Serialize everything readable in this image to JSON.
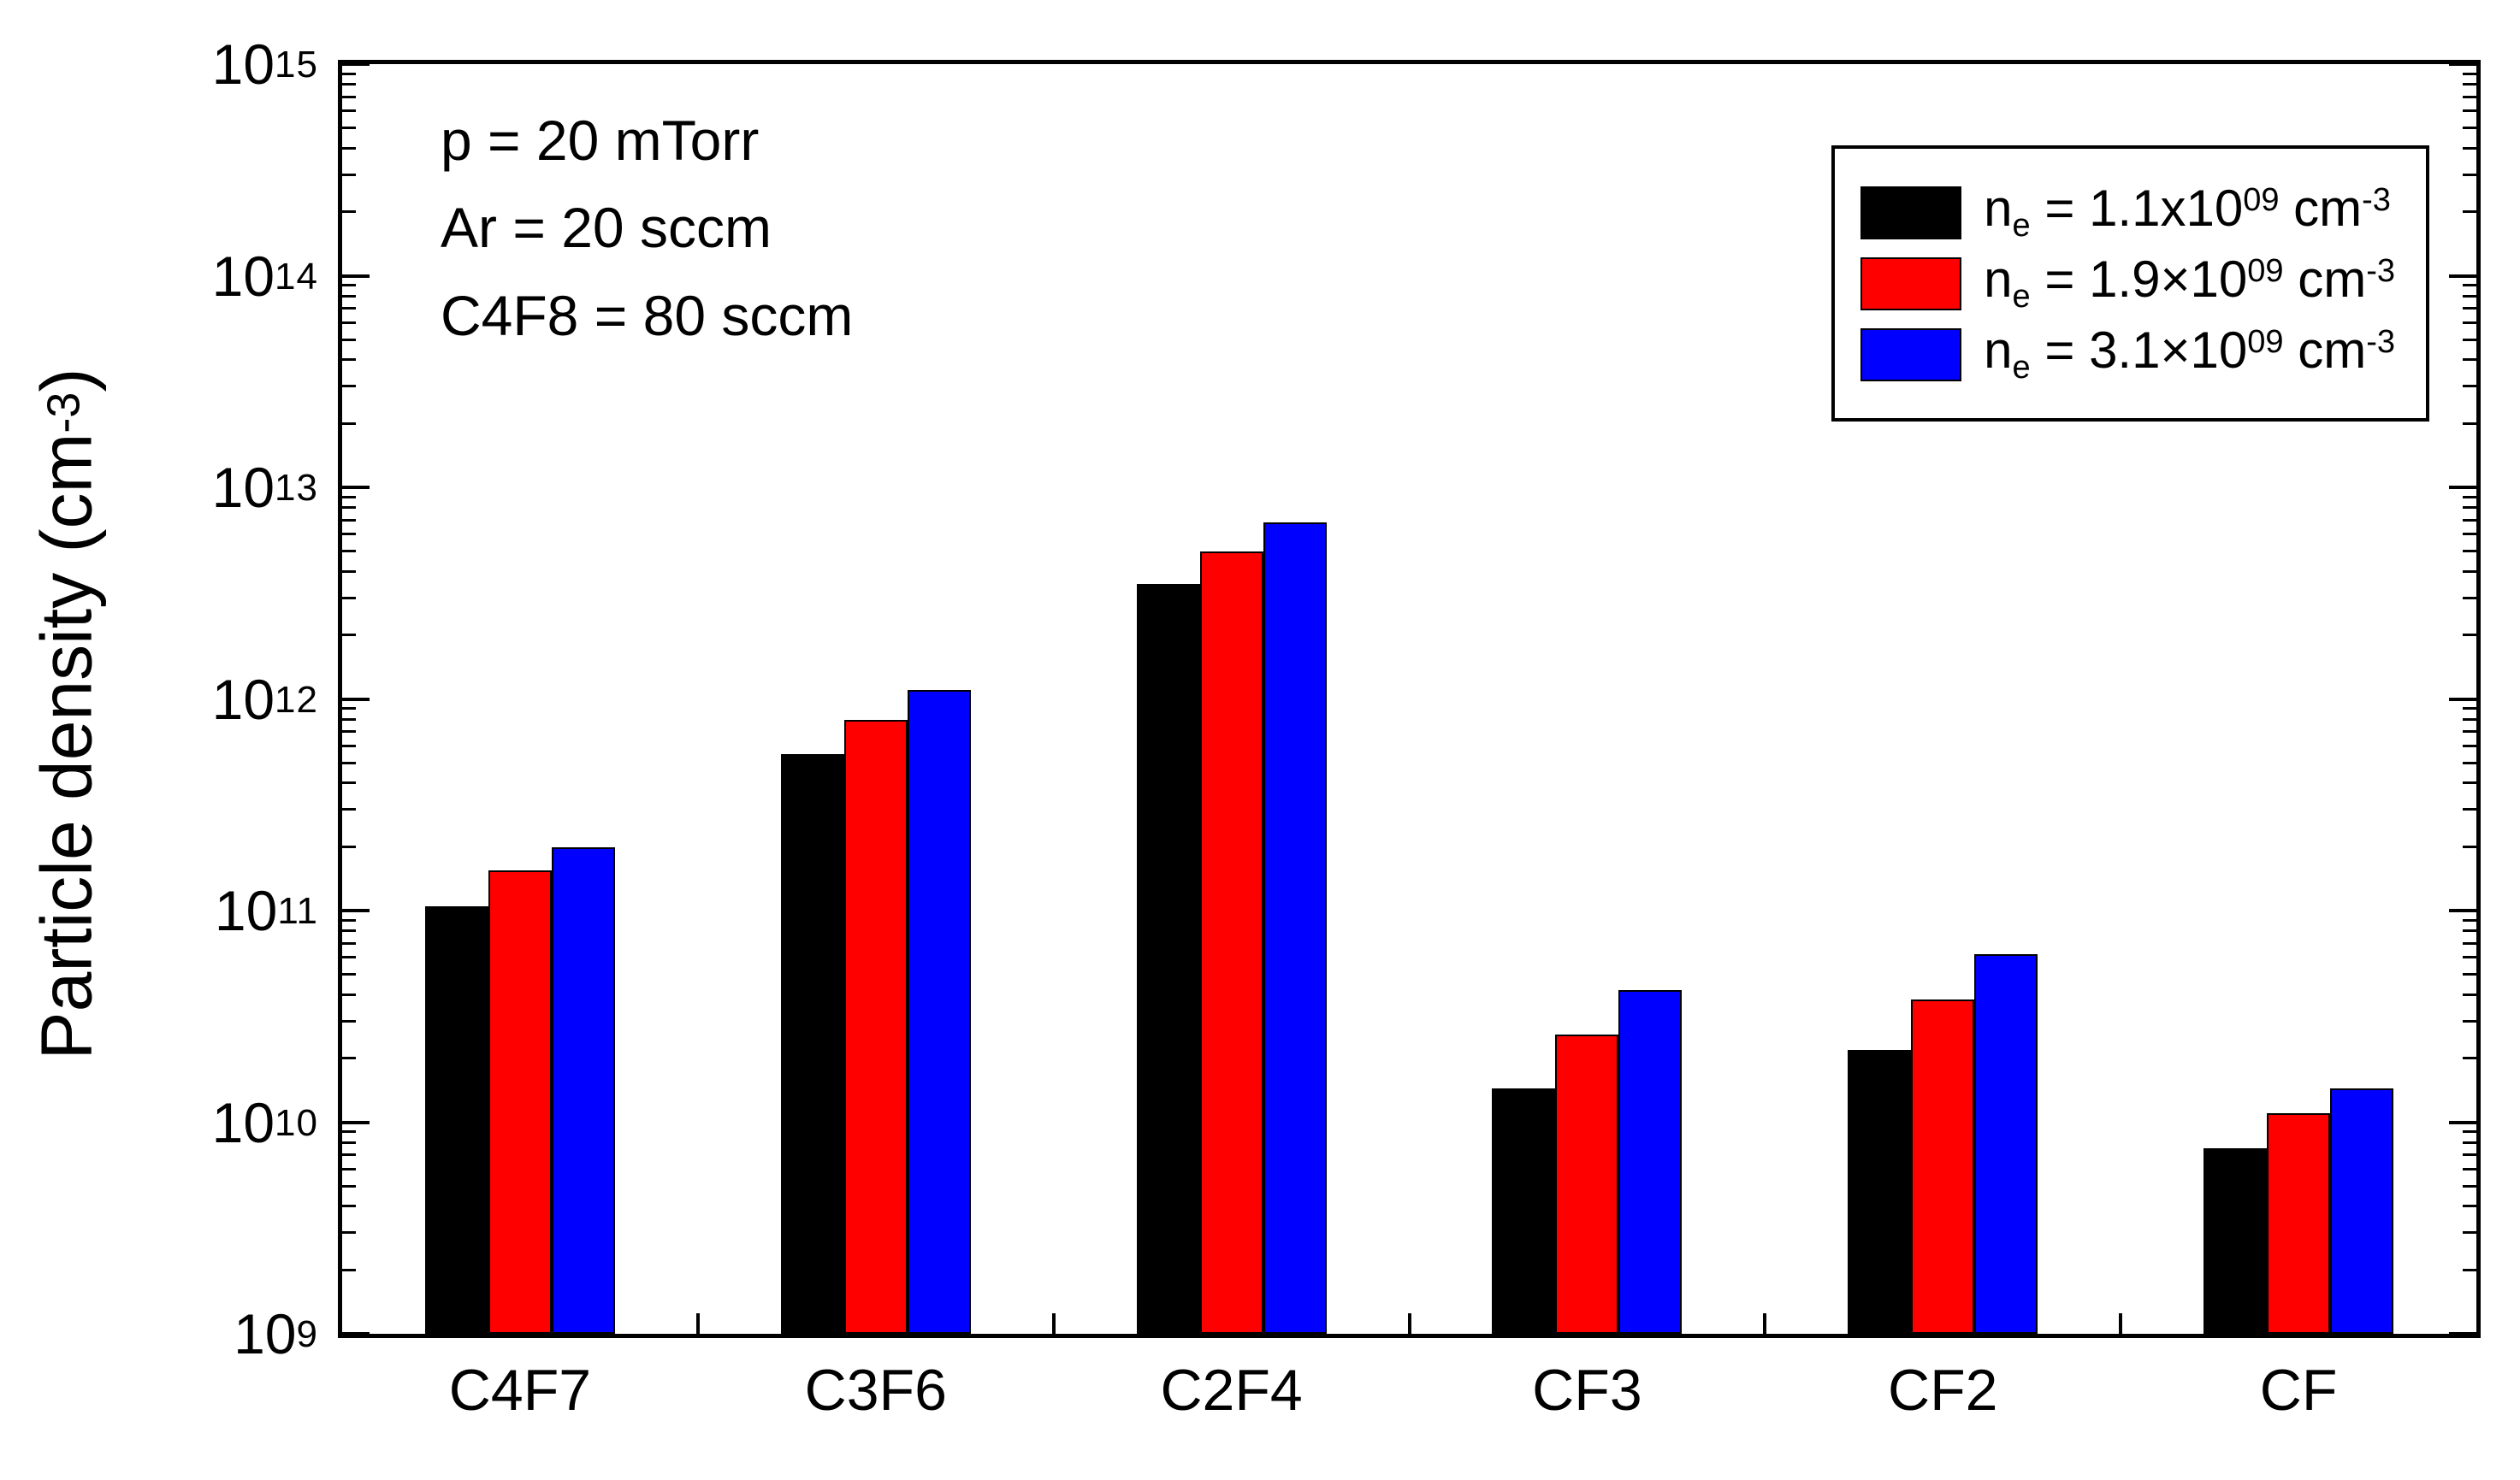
{
  "chart_data": {
    "type": "bar",
    "y_scale": "log",
    "categories": [
      "C4F7",
      "C3F6",
      "C2F4",
      "CF3",
      "CF2",
      "CF"
    ],
    "series": [
      {
        "name": "n_e = 1.1x10^09 cm^-3",
        "color": "#000000",
        "values": [
          105000000000.0,
          550000000000.0,
          3500000000000.0,
          14500000000.0,
          22000000000.0,
          7500000000.0
        ]
      },
      {
        "name": "n_e = 1.9x10^09 cm^-3",
        "color": "#ff0000",
        "values": [
          155000000000.0,
          800000000000.0,
          5000000000000.0,
          26000000000.0,
          38000000000.0,
          11000000000.0
        ]
      },
      {
        "name": "n_e = 3.1x10^09 cm^-3",
        "color": "#0000ff",
        "values": [
          200000000000.0,
          1100000000000.0,
          6800000000000.0,
          42000000000.0,
          62000000000.0,
          14500000000.0
        ]
      }
    ],
    "title": "",
    "xlabel": "",
    "ylabel": "Particle density (cm^-3)",
    "ylim": [
      1000000000.0,
      1000000000000000.0
    ],
    "grid": false,
    "legend_position": "top-right",
    "annotations": [
      "p = 20 mTorr",
      "Ar = 20 sccm",
      "C4F8 = 80 sccm"
    ]
  },
  "y_axis": {
    "title_pre": "Particle density (cm",
    "title_exp": "-3",
    "title_post": ")",
    "tick_base": "10",
    "tick_exponents_top_to_bottom": [
      "15",
      "14",
      "13",
      "12",
      "11",
      "10",
      "9"
    ]
  },
  "x_axis": {
    "labels": [
      "C4F7",
      "C3F6",
      "C2F4",
      "CF3",
      "CF2",
      "CF"
    ]
  },
  "legend": {
    "items": [
      {
        "swatch_color": "#000000",
        "base": "n",
        "sub": "e",
        "mid": " = 1.1x10",
        "exp": "09",
        "unit": " cm",
        "unit_exp": "-3"
      },
      {
        "swatch_color": "#ff0000",
        "base": "n",
        "sub": "e",
        "mid": " = 1.9×10",
        "exp": "09",
        "unit": " cm",
        "unit_exp": "-3"
      },
      {
        "swatch_color": "#0000ff",
        "base": "n",
        "sub": "e",
        "mid": " = 3.1×10",
        "exp": "09",
        "unit": " cm",
        "unit_exp": "-3"
      }
    ]
  },
  "colors": {
    "series_black": "#000000",
    "series_red": "#ff0000",
    "series_blue": "#0000ff",
    "axis": "#000000",
    "background": "#ffffff"
  }
}
